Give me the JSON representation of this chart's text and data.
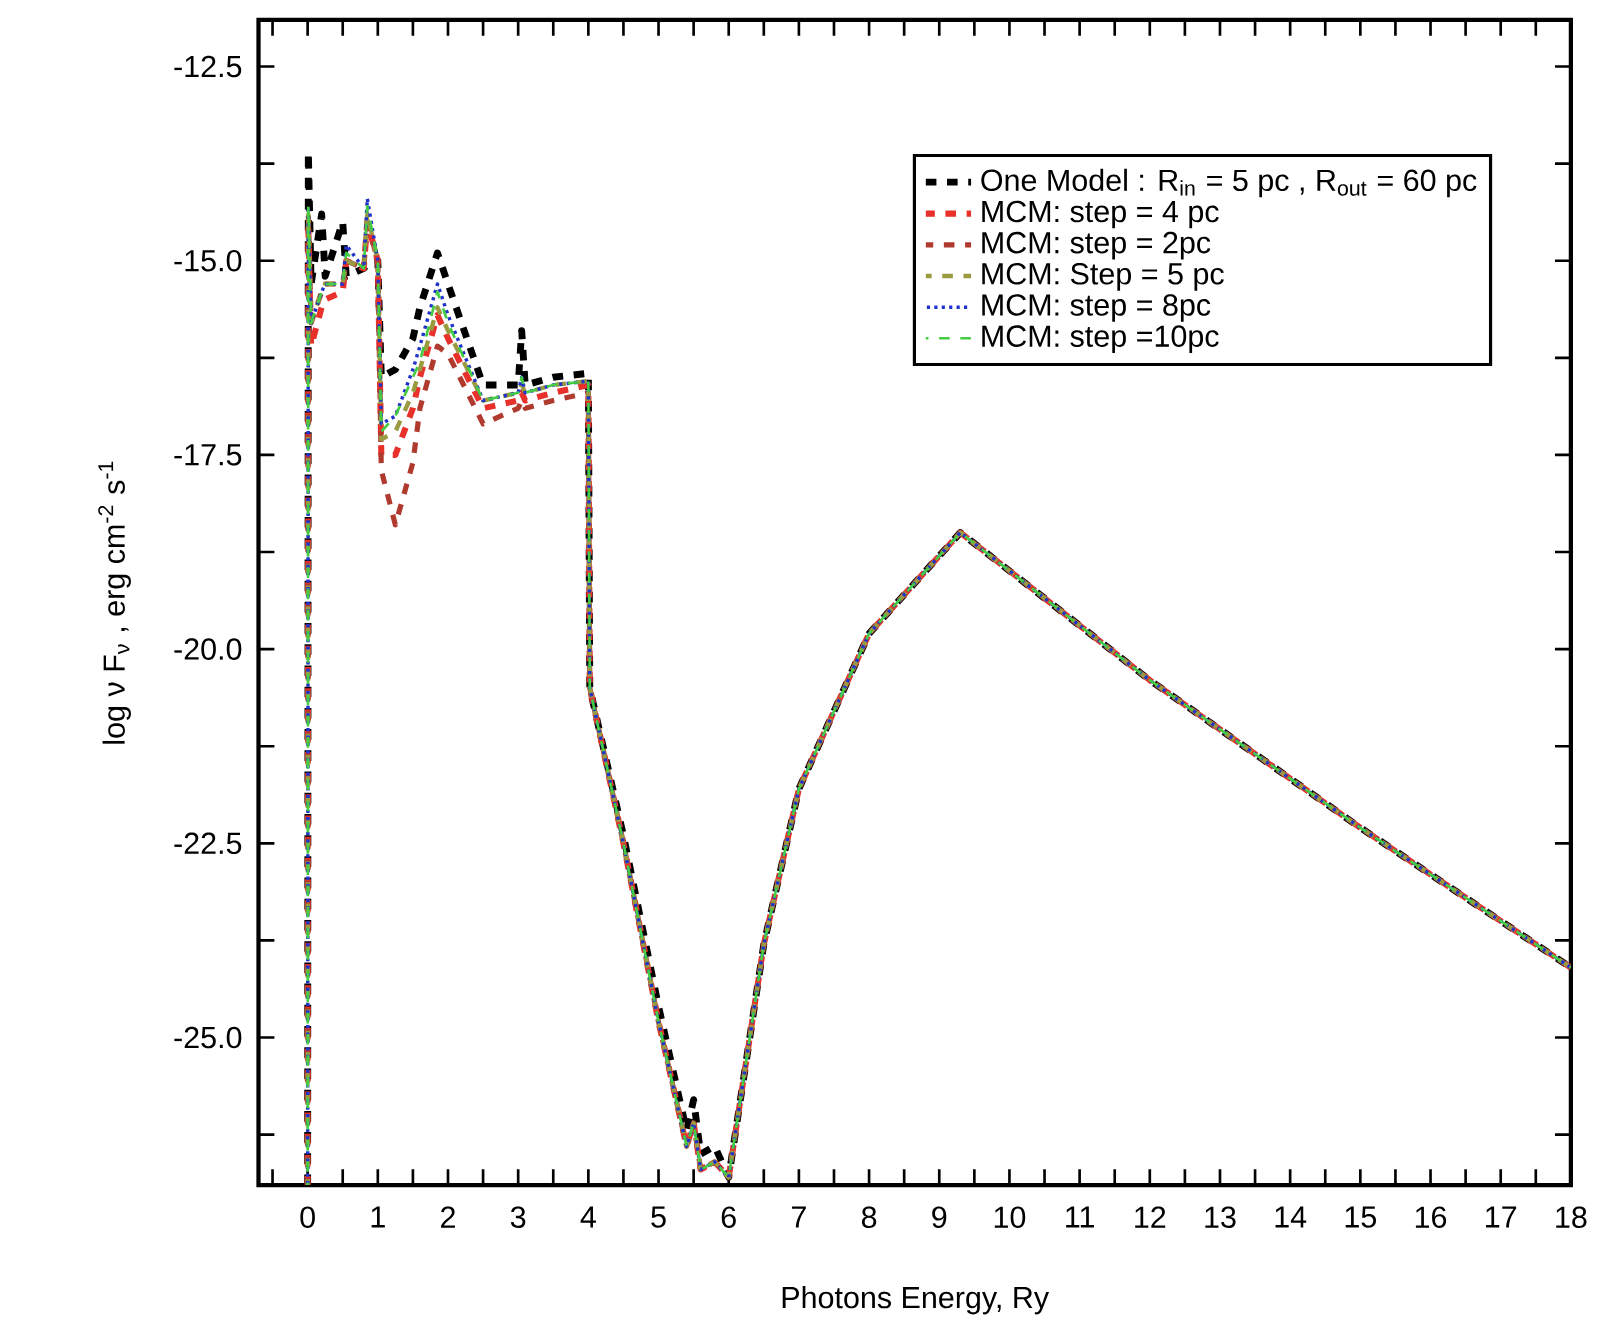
{
  "chart_data": {
    "type": "line",
    "xlabel": "Photons Energy, Ry",
    "ylabel": "log ν F$_{ν}$ , erg cm$^{-2}$ s$^{-1}$",
    "xlim": [
      -0.7,
      18
    ],
    "ylim": [
      -26.9,
      -11.9
    ],
    "xticks": [
      {
        "value": -0.5,
        "label": null
      },
      0,
      {
        "value": 0.5,
        "label": null
      },
      1,
      {
        "value": 1.5,
        "label": null
      },
      2,
      {
        "value": 2.5,
        "label": null
      },
      3,
      {
        "value": 3.5,
        "label": null
      },
      4,
      {
        "value": 4.5,
        "label": null
      },
      5,
      {
        "value": 5.5,
        "label": null
      },
      6,
      {
        "value": 6.5,
        "label": null
      },
      7,
      {
        "value": 7.5,
        "label": null
      },
      8,
      {
        "value": 8.5,
        "label": null
      },
      9,
      {
        "value": 9.5,
        "label": null
      },
      10,
      {
        "value": 10.5,
        "label": null
      },
      11,
      {
        "value": 11.5,
        "label": null
      },
      12,
      {
        "value": 12.5,
        "label": null
      },
      13,
      {
        "value": 13.5,
        "label": null
      },
      14,
      {
        "value": 14.5,
        "label": null
      },
      15,
      {
        "value": 15.5,
        "label": null
      },
      16,
      {
        "value": 16.5,
        "label": null
      },
      17,
      {
        "value": 17.5,
        "label": null
      },
      18
    ],
    "yticks": [
      {
        "value": -26.25,
        "label": null
      },
      {
        "value": -25,
        "label": "-25.0"
      },
      {
        "value": -23.75,
        "label": null
      },
      {
        "value": -22.5,
        "label": "-22.5"
      },
      {
        "value": -21.25,
        "label": null
      },
      {
        "value": -20,
        "label": "-20.0"
      },
      {
        "value": -18.75,
        "label": null
      },
      {
        "value": -17.5,
        "label": "-17.5"
      },
      {
        "value": -16.25,
        "label": null
      },
      {
        "value": -15,
        "label": "-15.0"
      },
      {
        "value": -13.75,
        "label": null
      },
      {
        "value": -12.5,
        "label": "-12.5"
      }
    ],
    "legend": "top right",
    "x": [
      0,
      0.01,
      0.05,
      0.2,
      0.25,
      0.5,
      0.55,
      0.8,
      0.85,
      1.0,
      1.05,
      1.25,
      1.5,
      1.6,
      1.85,
      2.0,
      2.5,
      3.0,
      3.05,
      3.1,
      3.5,
      4.0,
      4.02,
      4.5,
      5.0,
      5.4,
      5.5,
      5.6,
      5.8,
      6.0,
      6.5,
      7.0,
      8.0,
      9.3,
      12.0,
      15.0,
      18.0
    ],
    "series": [
      {
        "name": "One Model : R$_{in}$ = 5 pc , R$_{out}$ = 60 pc",
        "color": "#000000",
        "line_style": "dashed",
        "values": [
          -26.9,
          -13.6,
          -15.3,
          -14.4,
          -15.2,
          -14.5,
          -15.2,
          -15.1,
          -15.05,
          -15.0,
          -16.5,
          -16.4,
          -16.0,
          -15.6,
          -14.9,
          -15.3,
          -16.6,
          -16.6,
          -15.9,
          -16.6,
          -16.5,
          -16.45,
          -20.5,
          -22.4,
          -24.6,
          -26.2,
          -25.8,
          -26.5,
          -26.4,
          -26.8,
          -23.8,
          -21.8,
          -19.8,
          -18.5,
          -20.4,
          -22.3,
          -24.1
        ]
      },
      {
        "name": "MCM: step = 4 pc",
        "color": "#e8312a",
        "line_style": "dashed",
        "values": [
          -26.9,
          -14.6,
          -16.1,
          -15.6,
          -15.5,
          -15.4,
          -15.0,
          -15.1,
          -14.5,
          -15.0,
          -17.5,
          -17.5,
          -16.9,
          -16.5,
          -15.7,
          -16.0,
          -16.9,
          -16.8,
          -16.7,
          -16.8,
          -16.7,
          -16.6,
          -20.5,
          -22.5,
          -24.8,
          -26.4,
          -26.1,
          -26.7,
          -26.6,
          -26.8,
          -23.8,
          -21.8,
          -19.8,
          -18.5,
          -20.4,
          -22.3,
          -24.1
        ]
      },
      {
        "name": "MCM: step = 2pc",
        "color": "#b03a2e",
        "line_style": "dashed",
        "values": [
          -26.9,
          -14.4,
          -15.8,
          -15.4,
          -15.3,
          -15.3,
          -15.0,
          -15.1,
          -14.5,
          -15.0,
          -17.7,
          -18.4,
          -17.6,
          -16.9,
          -16.1,
          -16.2,
          -17.1,
          -16.9,
          -16.8,
          -16.9,
          -16.8,
          -16.7,
          -20.5,
          -22.5,
          -24.8,
          -26.4,
          -26.1,
          -26.7,
          -26.6,
          -26.8,
          -23.8,
          -21.8,
          -19.8,
          -18.5,
          -20.4,
          -22.3,
          -24.1
        ]
      },
      {
        "name": "MCM: Step = 5 pc",
        "color": "#9a9a40",
        "line_style": "dashed",
        "values": [
          -26.9,
          -14.4,
          -15.8,
          -15.4,
          -15.3,
          -15.3,
          -15.0,
          -15.1,
          -14.4,
          -15.0,
          -17.3,
          -17.2,
          -16.7,
          -16.4,
          -15.6,
          -15.9,
          -16.8,
          -16.7,
          -16.6,
          -16.7,
          -16.6,
          -16.55,
          -20.5,
          -22.5,
          -24.8,
          -26.4,
          -26.1,
          -26.7,
          -26.6,
          -26.8,
          -23.8,
          -21.8,
          -19.8,
          -18.5,
          -20.4,
          -22.3,
          -24.1
        ]
      },
      {
        "name": "MCM: step = 8pc",
        "color": "#2233cc",
        "line_style": "dotted",
        "values": [
          -26.9,
          -14.3,
          -15.8,
          -15.4,
          -15.3,
          -15.3,
          -14.8,
          -15.1,
          -14.2,
          -15.0,
          -17.1,
          -17.0,
          -16.4,
          -16.1,
          -15.3,
          -15.7,
          -16.8,
          -16.7,
          -16.5,
          -16.7,
          -16.6,
          -16.55,
          -20.5,
          -22.5,
          -24.8,
          -26.4,
          -26.1,
          -26.7,
          -26.6,
          -26.8,
          -23.8,
          -21.8,
          -19.8,
          -18.5,
          -20.4,
          -22.3,
          -24.1
        ]
      },
      {
        "name": "MCM: step =10pc",
        "color": "#44cc44",
        "line_style": "dashed",
        "values": [
          -26.9,
          -14.3,
          -15.8,
          -15.4,
          -15.3,
          -15.3,
          -14.9,
          -15.1,
          -14.3,
          -15.0,
          -17.2,
          -17.0,
          -16.5,
          -16.3,
          -15.4,
          -15.8,
          -16.8,
          -16.7,
          -16.5,
          -16.7,
          -16.6,
          -16.55,
          -20.5,
          -22.5,
          -24.8,
          -26.4,
          -26.1,
          -26.7,
          -26.6,
          -26.8,
          -23.8,
          -21.8,
          -19.8,
          -18.5,
          -20.4,
          -22.3,
          -24.1
        ]
      }
    ]
  }
}
